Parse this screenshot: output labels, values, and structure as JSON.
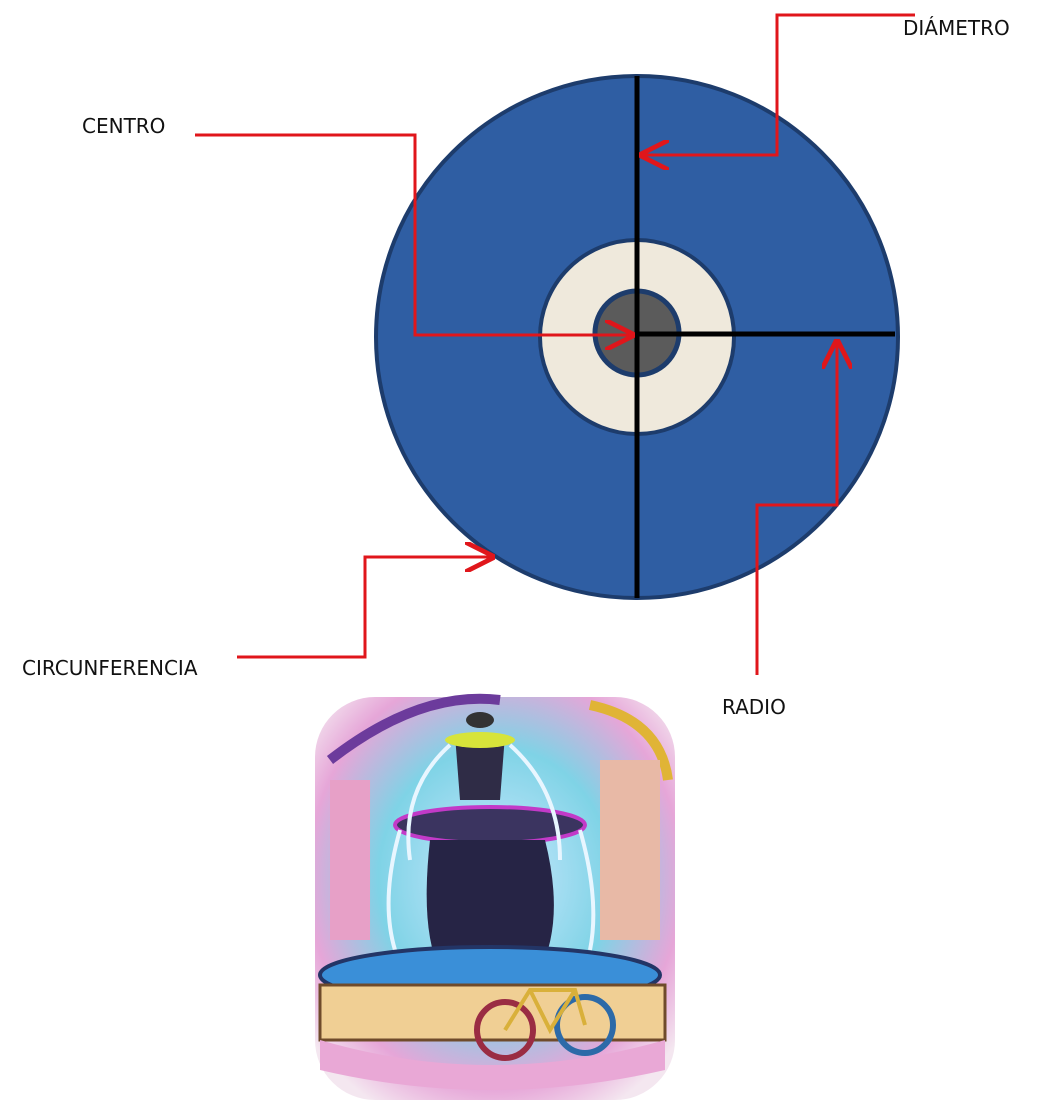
{
  "labels": {
    "diameter": "DIÁMETRO",
    "center": "CENTRO",
    "circumference": "CIRCUNFERENCIA",
    "radius": "RADIO"
  }
}
